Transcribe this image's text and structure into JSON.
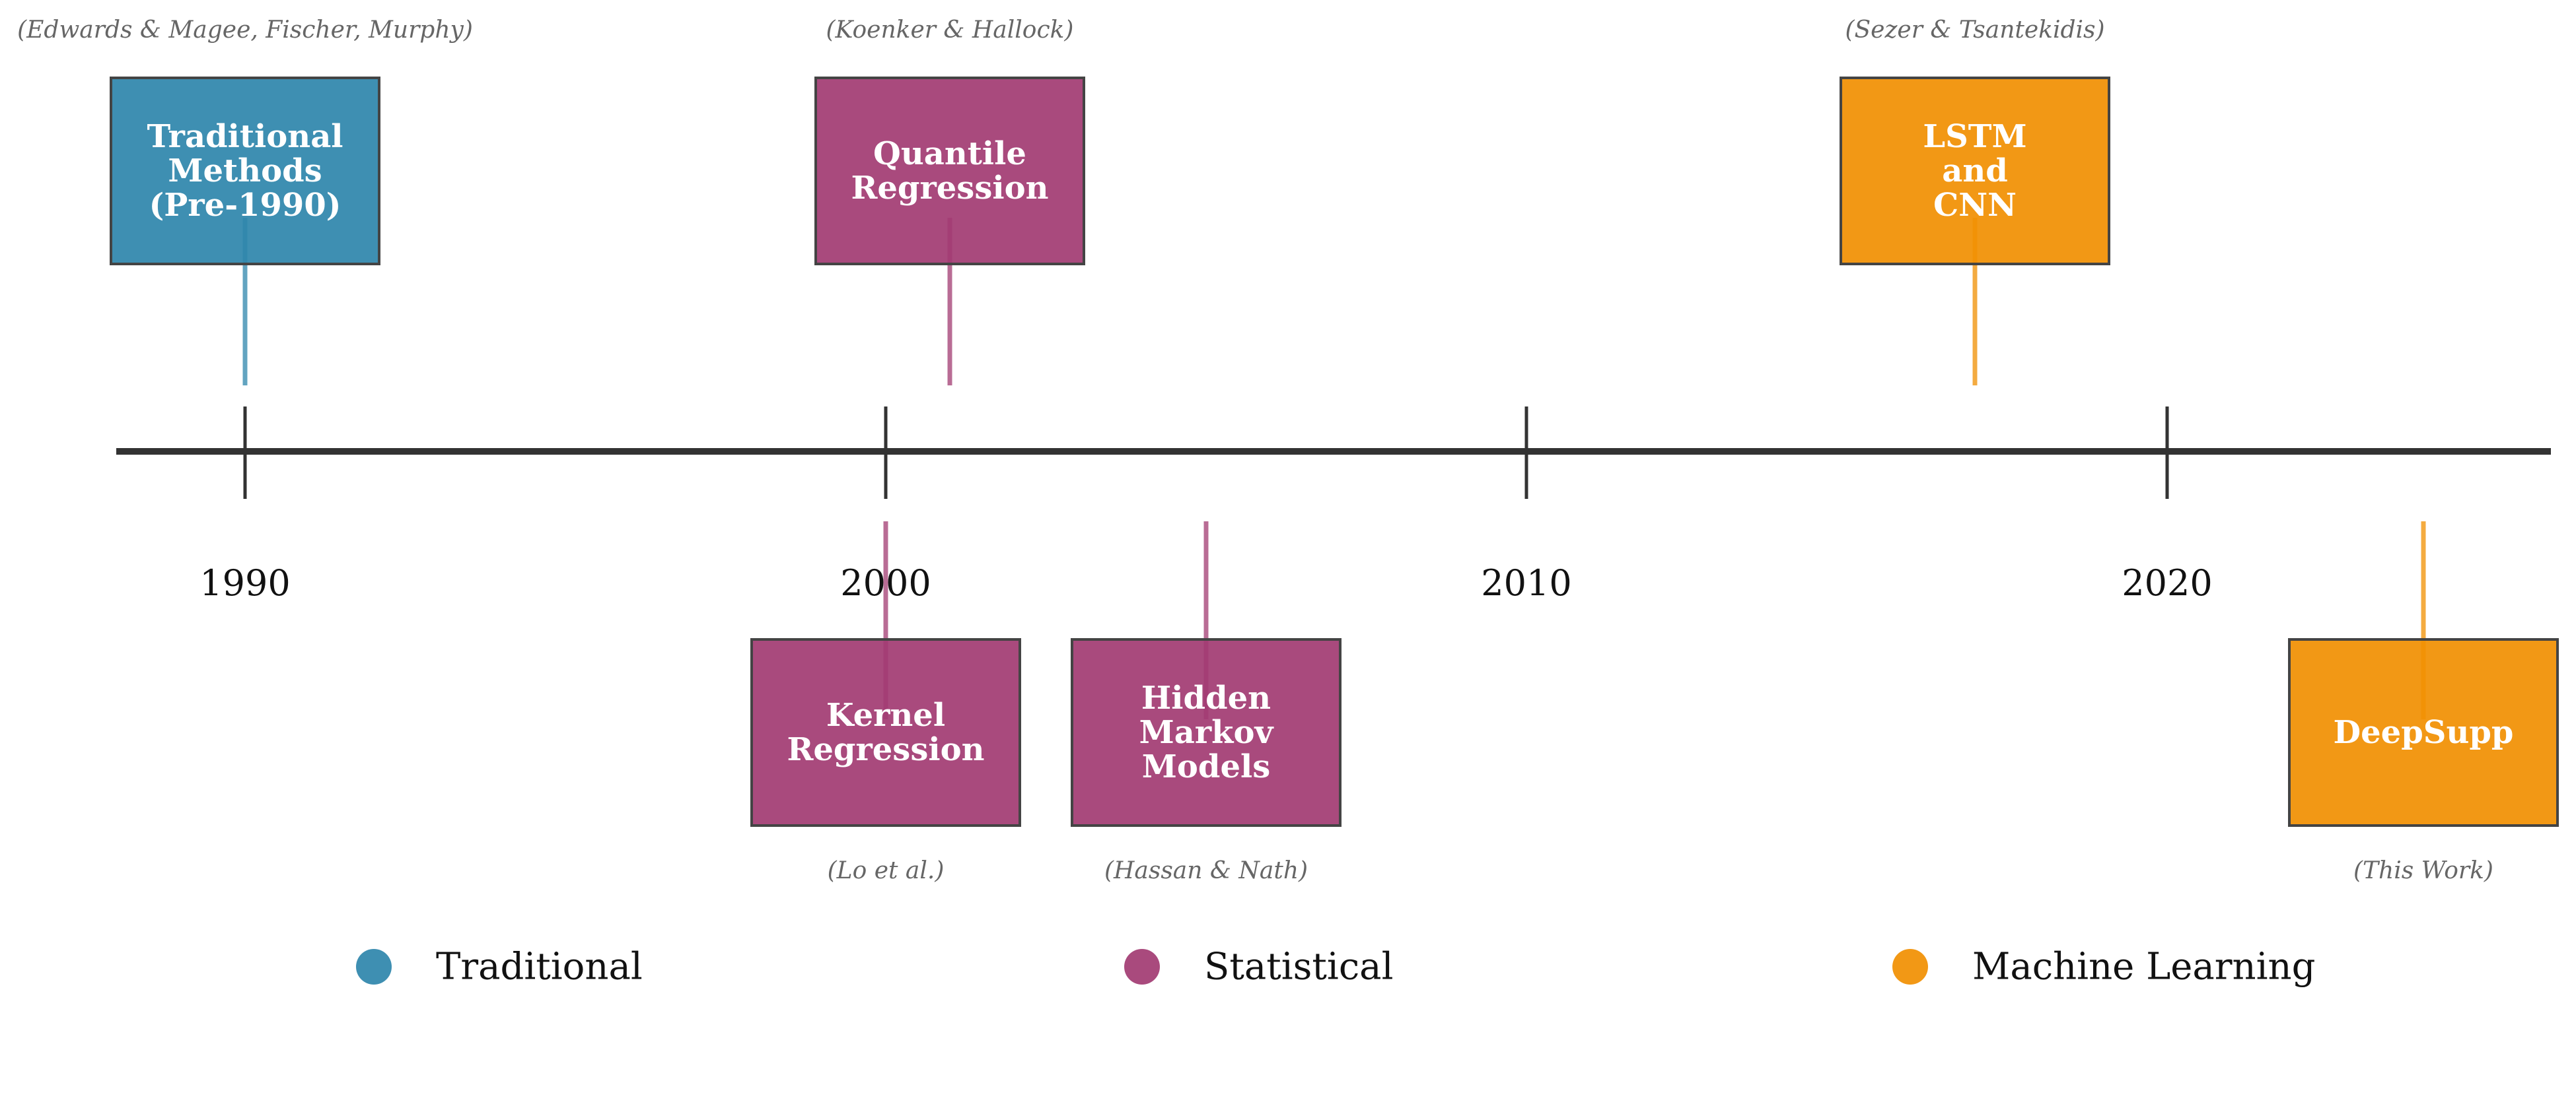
{
  "axis": {
    "start_year": 1988,
    "end_year": 2026,
    "ticks": [
      {
        "year": 1990,
        "label": "1990"
      },
      {
        "year": 2000,
        "label": "2000"
      },
      {
        "year": 2010,
        "label": "2010"
      },
      {
        "year": 2020,
        "label": "2020"
      }
    ]
  },
  "categories": {
    "traditional": {
      "label": "Traditional",
      "color": "#2E86AB"
    },
    "statistical": {
      "label": "Statistical",
      "color": "#A23B72"
    },
    "ml": {
      "label": "Machine Learning",
      "color": "#F18F01"
    }
  },
  "events": [
    {
      "id": "traditional-methods",
      "year": 1990,
      "side": "above",
      "category": "traditional",
      "lines": [
        "Traditional",
        "Methods",
        "(Pre-1990)"
      ],
      "citation": "(Edwards & Magee, Fischer, Murphy)"
    },
    {
      "id": "quantile-regression",
      "year": 2001,
      "side": "above",
      "category": "statistical",
      "lines": [
        "Quantile",
        "Regression"
      ],
      "citation": "(Koenker & Hallock)"
    },
    {
      "id": "lstm-cnn",
      "year": 2017,
      "side": "above",
      "category": "ml",
      "lines": [
        "LSTM",
        "and",
        "CNN"
      ],
      "citation": "(Sezer & Tsantekidis)"
    },
    {
      "id": "kernel-regression",
      "year": 2000,
      "side": "below",
      "category": "statistical",
      "lines": [
        "Kernel",
        "Regression"
      ],
      "citation": "(Lo et al.)"
    },
    {
      "id": "hidden-markov-models",
      "year": 2005,
      "side": "below",
      "category": "statistical",
      "lines": [
        "Hidden",
        "Markov",
        "Models"
      ],
      "citation": "(Hassan & Nath)"
    },
    {
      "id": "deepsupp",
      "year": 2024,
      "side": "below",
      "category": "ml",
      "lines": [
        "DeepSupp"
      ],
      "citation": "(This Work)"
    }
  ],
  "legend": [
    {
      "category": "traditional",
      "label": "Traditional"
    },
    {
      "category": "statistical",
      "label": "Statistical"
    },
    {
      "category": "ml",
      "label": "Machine Learning"
    }
  ]
}
